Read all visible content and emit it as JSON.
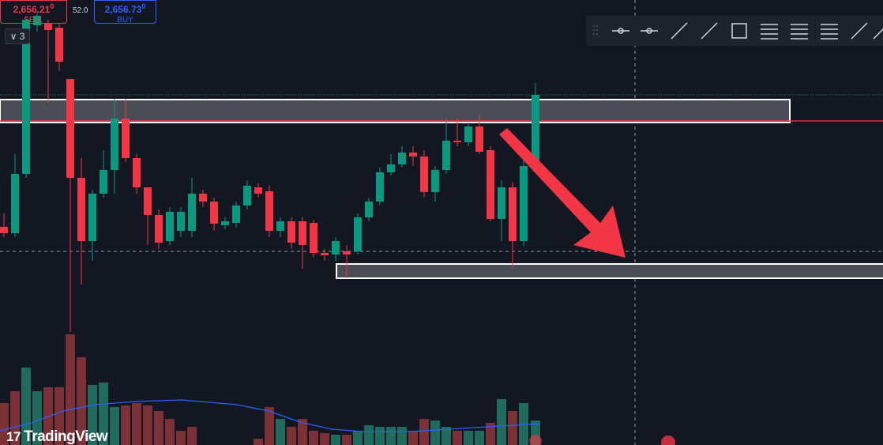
{
  "order_panel": {
    "sell": {
      "price": "2,656.21",
      "price_small": "0",
      "label": "SELL"
    },
    "spread": "52.0",
    "buy": {
      "price": "2,656.73",
      "price_small": "0",
      "label": "BUY"
    }
  },
  "layers_badge": "3",
  "branding": "TradingView"
}
